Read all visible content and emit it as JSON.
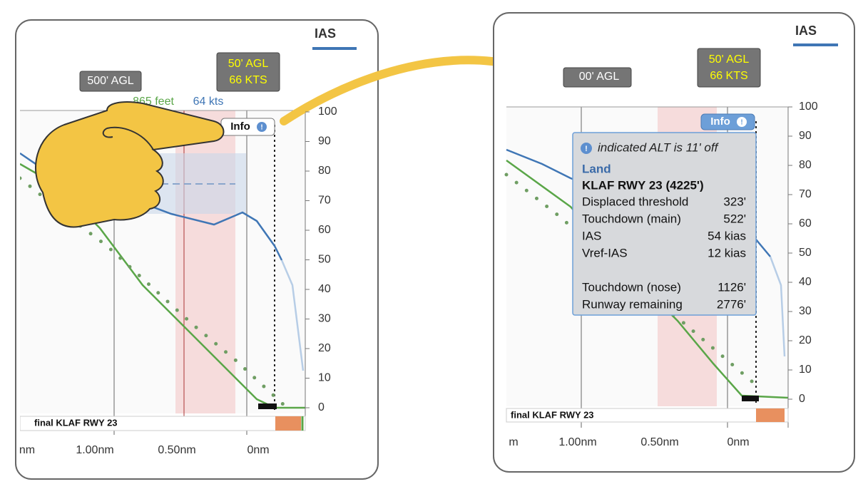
{
  "left": {
    "legend": "IAS",
    "yticks": [
      100,
      90,
      80,
      70,
      60,
      50,
      40,
      30,
      20,
      10,
      0
    ],
    "xticks": [
      "nm",
      "1.00nm",
      "0.50nm",
      "0nm"
    ],
    "callout_agl": "500' AGL",
    "callout_50": [
      "50' AGL",
      "66 KTS"
    ],
    "readout": {
      "alt": "865 feet",
      "ias": "64 kts"
    },
    "info_button": "Info",
    "runway_bar": "final KLAF RWY 23"
  },
  "right": {
    "legend": "IAS",
    "yticks": [
      100,
      90,
      80,
      70,
      60,
      50,
      40,
      30,
      20,
      10,
      0
    ],
    "xticks": [
      "m",
      "1.00nm",
      "0.50nm",
      "0nm"
    ],
    "callout_agl": "00' AGL",
    "callout_50": [
      "50' AGL",
      "66 KTS"
    ],
    "info_button": "Info",
    "runway_bar": "final KLAF RWY 23",
    "tooltip": {
      "warning": "indicated ALT is 11' off",
      "heading": "Land",
      "runway": "KLAF RWY 23 (4225')",
      "rows": [
        [
          "Displaced threshold",
          "323'"
        ],
        [
          "Touchdown (main)",
          "522'"
        ],
        [
          "IAS",
          "54 kias"
        ],
        [
          "Vref-IAS",
          "12 kias"
        ],
        [
          "Touchdown (nose)",
          "1126'"
        ],
        [
          "Runway remaining",
          "2776'"
        ]
      ]
    }
  }
}
